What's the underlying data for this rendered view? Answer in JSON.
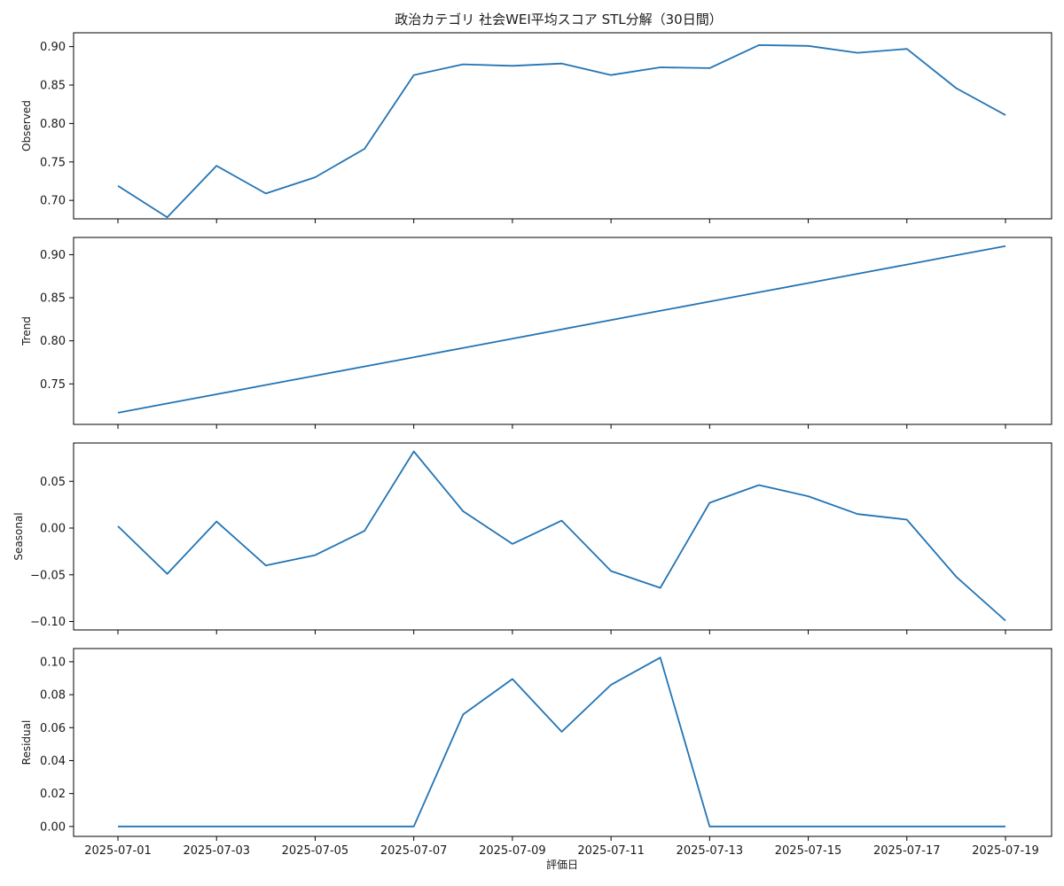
{
  "chart_data": {
    "type": "line",
    "title": "政治カテゴリ 社会WEI平均スコア STL分解（30日間）",
    "xlabel": "評価日",
    "line_color": "#2274b5",
    "x": [
      "2025-07-01",
      "2025-07-02",
      "2025-07-03",
      "2025-07-04",
      "2025-07-05",
      "2025-07-06",
      "2025-07-07",
      "2025-07-08",
      "2025-07-09",
      "2025-07-10",
      "2025-07-11",
      "2025-07-12",
      "2025-07-13",
      "2025-07-14",
      "2025-07-15",
      "2025-07-16",
      "2025-07-17",
      "2025-07-18",
      "2025-07-19"
    ],
    "x_ticks": [
      "2025-07-01",
      "2025-07-03",
      "2025-07-05",
      "2025-07-07",
      "2025-07-09",
      "2025-07-11",
      "2025-07-13",
      "2025-07-15",
      "2025-07-17",
      "2025-07-19"
    ],
    "panels": [
      {
        "ylabel": "Observed",
        "ylim": [
          0.676,
          0.918
        ],
        "yticks": [
          "0.70",
          "0.75",
          "0.80",
          "0.85",
          "0.90"
        ],
        "values": [
          0.719,
          0.678,
          0.745,
          0.709,
          0.73,
          0.767,
          0.863,
          0.877,
          0.875,
          0.878,
          0.863,
          0.873,
          0.872,
          0.902,
          0.901,
          0.892,
          0.897,
          0.846,
          0.811
        ]
      },
      {
        "ylabel": "Trend",
        "ylim": [
          0.703,
          0.92
        ],
        "yticks": [
          "0.75",
          "0.80",
          "0.85",
          "0.90"
        ],
        "values": [
          0.7165,
          0.7273,
          0.738,
          0.7488,
          0.7595,
          0.7703,
          0.781,
          0.7918,
          0.8025,
          0.8133,
          0.824,
          0.8348,
          0.8455,
          0.8563,
          0.867,
          0.8778,
          0.8885,
          0.8993,
          0.91
        ]
      },
      {
        "ylabel": "Seasonal",
        "ylim": [
          -0.109,
          0.091
        ],
        "yticks": [
          "0.05",
          "0.00",
          "−0.05",
          "−0.10"
        ],
        "ytick_values": [
          0.05,
          0.0,
          -0.05,
          -0.1
        ],
        "values": [
          0.002,
          -0.049,
          0.007,
          -0.04,
          -0.029,
          -0.003,
          0.082,
          0.018,
          -0.017,
          0.008,
          -0.046,
          -0.064,
          0.027,
          0.046,
          0.034,
          0.015,
          0.009,
          -0.052,
          -0.099
        ]
      },
      {
        "ylabel": "Residual",
        "ylim": [
          -0.006,
          0.108
        ],
        "yticks": [
          "0.00",
          "0.02",
          "0.04",
          "0.06",
          "0.08",
          "0.10"
        ],
        "values": [
          0,
          0,
          0,
          0,
          0,
          0,
          0,
          0.068,
          0.0895,
          0.0575,
          0.086,
          0.1025,
          0,
          0,
          0,
          0,
          0,
          0,
          0
        ]
      }
    ]
  }
}
